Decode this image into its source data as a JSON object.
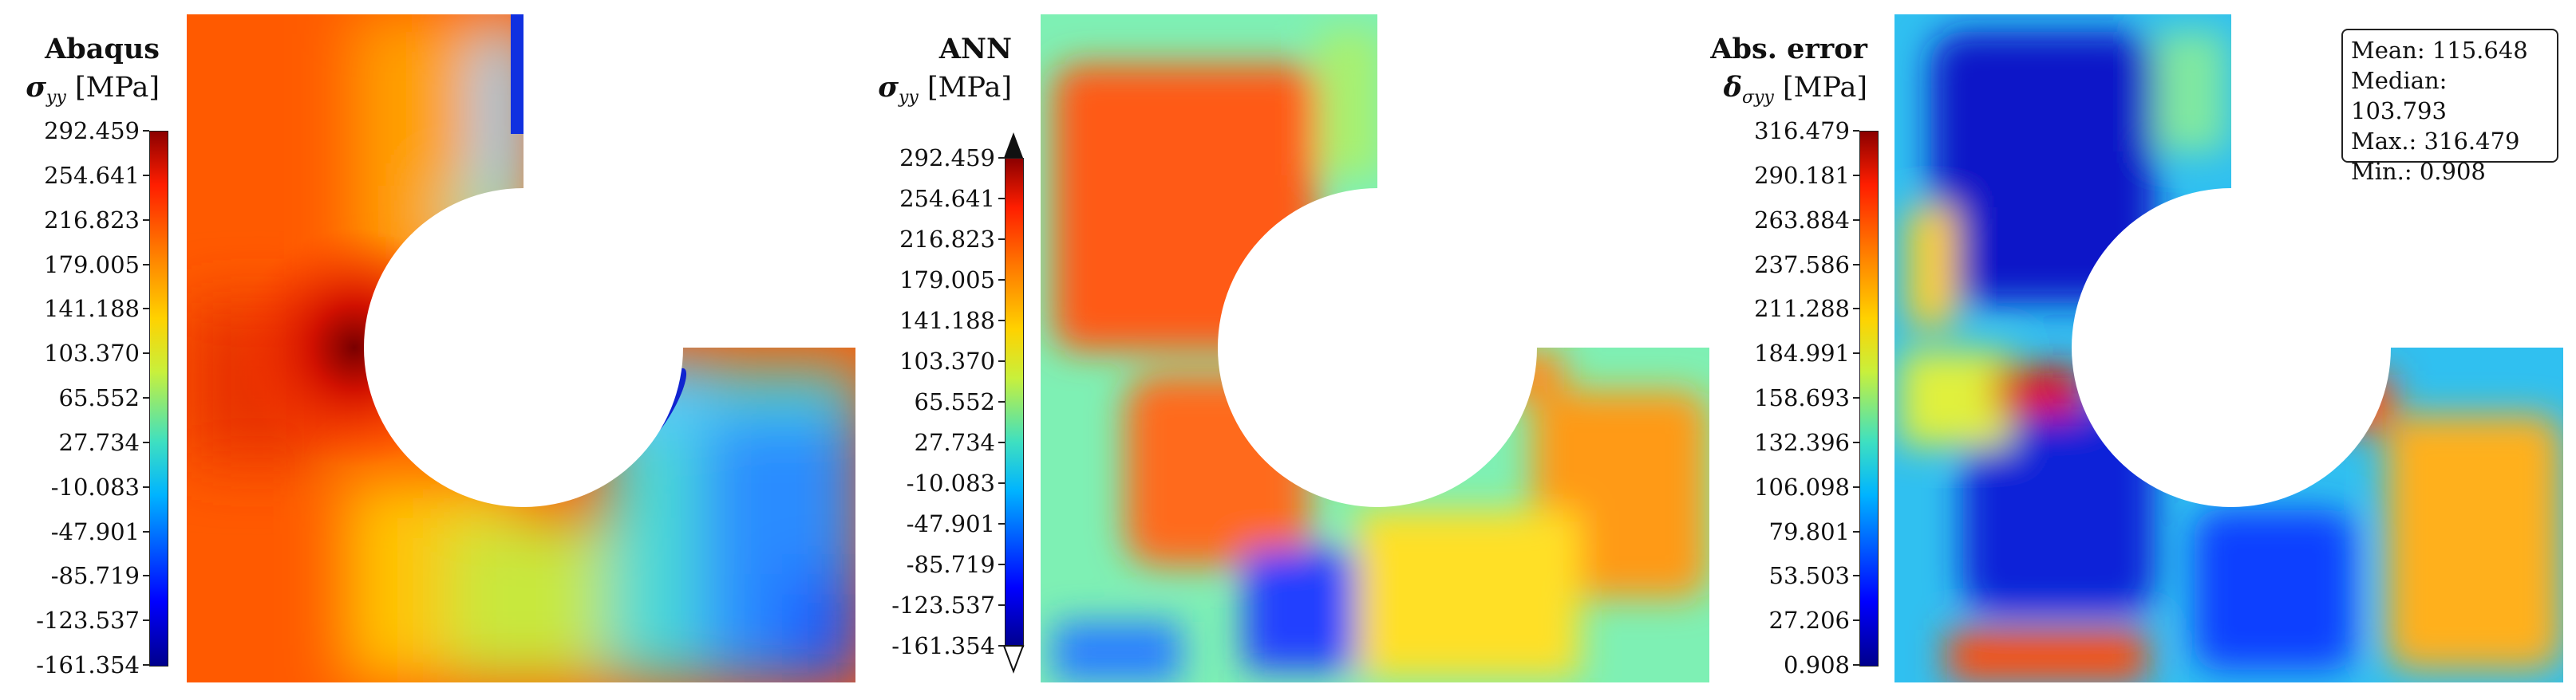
{
  "chart_data": [
    {
      "type": "heatmap",
      "title": "Abaqus",
      "quantity": "σ",
      "subscript": "yy",
      "unit": "[MPa]",
      "colormap": "jet",
      "colorbar_ticks": [
        "292.459",
        "254.641",
        "216.823",
        "179.005",
        "141.188",
        "103.370",
        "65.552",
        "27.734",
        "-10.083",
        "-47.901",
        "-85.719",
        "-123.537",
        "-161.354"
      ],
      "range": [
        -161.354,
        292.459
      ],
      "extend_arrows": false
    },
    {
      "type": "heatmap",
      "title": "ANN",
      "quantity": "σ",
      "subscript": "yy",
      "unit": "[MPa]",
      "colormap": "jet",
      "colorbar_ticks": [
        "292.459",
        "254.641",
        "216.823",
        "179.005",
        "141.188",
        "103.370",
        "65.552",
        "27.734",
        "-10.083",
        "-47.901",
        "-85.719",
        "-123.537",
        "-161.354"
      ],
      "range": [
        -161.354,
        292.459
      ],
      "extend_arrows": true
    },
    {
      "type": "heatmap",
      "title": "Abs. error",
      "quantity": "δ",
      "subscript": "σyy",
      "unit": "[MPa]",
      "colormap": "jet",
      "colorbar_ticks": [
        "316.479",
        "290.181",
        "263.884",
        "237.586",
        "211.288",
        "184.991",
        "158.693",
        "132.396",
        "106.098",
        "79.801",
        "53.503",
        "27.206",
        "0.908"
      ],
      "range": [
        0.908,
        316.479
      ],
      "extend_arrows": false,
      "stats": {
        "mean_label": "Mean: 115.648",
        "median_label": "Median: 103.793",
        "max_label": "Max.: 316.479",
        "min_label": "Min.: 0.908"
      }
    }
  ]
}
